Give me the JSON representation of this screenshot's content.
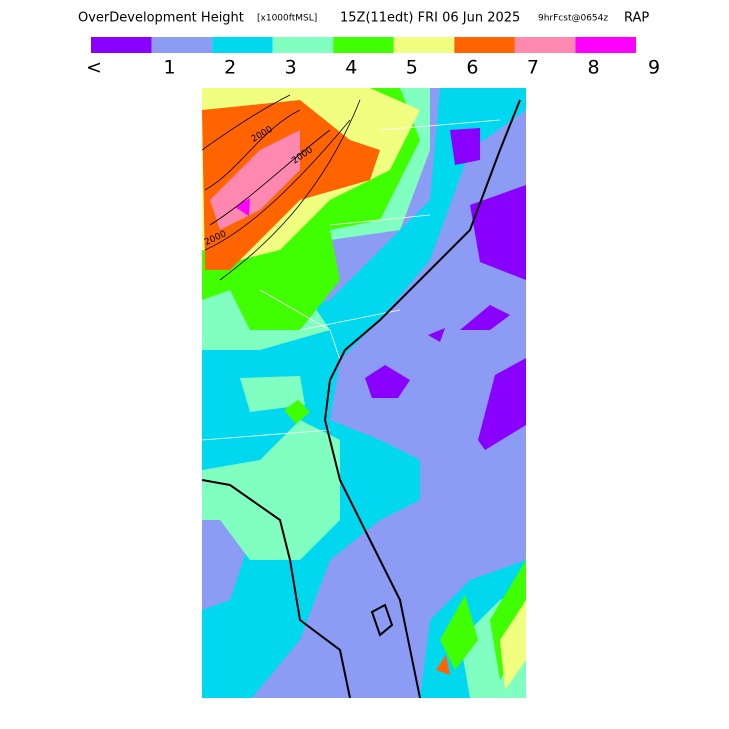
{
  "header": {
    "title": "OverDevelopment Height",
    "units": "[x1000ftMSL]",
    "valid_time": "15Z(11edt) FRI 06 Jun 2025",
    "forecast": "9hrFcst@0654z",
    "model": "RAP"
  },
  "legend": {
    "colors": [
      "#8a00ff",
      "#8c9cf5",
      "#00d8f0",
      "#80ffc0",
      "#40ff00",
      "#f0ff80",
      "#ff6400",
      "#ff88b0",
      "#ff00ff"
    ],
    "labels": [
      "<",
      "1",
      "2",
      "3",
      "4",
      "5",
      "6",
      "7",
      "8",
      "9"
    ]
  },
  "map": {
    "contour_labels": [
      "2000",
      "2000",
      "2000"
    ]
  }
}
